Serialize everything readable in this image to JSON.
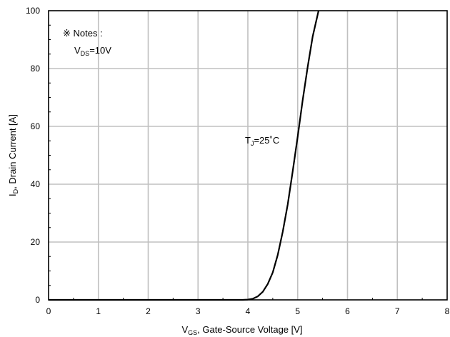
{
  "chart_data": {
    "type": "line",
    "xlabel": {
      "main": "V",
      "sub": "GS",
      "rest": ", Gate-Source Voltage [V]"
    },
    "ylabel": {
      "main": "I",
      "sub": "D",
      "rest": ", Drain Current [A]"
    },
    "xlim": [
      0,
      8
    ],
    "ylim": [
      0,
      100
    ],
    "x_ticks": [
      0,
      1,
      2,
      3,
      4,
      5,
      6,
      7,
      8
    ],
    "y_ticks": [
      0,
      20,
      40,
      60,
      80,
      100
    ],
    "x_tick_labels": [
      "0",
      "1",
      "2",
      "3",
      "4",
      "5",
      "6",
      "7",
      "8"
    ],
    "y_tick_labels": [
      "0",
      "20",
      "40",
      "60",
      "80",
      "100"
    ],
    "grid": true,
    "series": [
      {
        "color": "#000000",
        "x": [
          0.0,
          3.0,
          3.7,
          3.9,
          4.0,
          4.1,
          4.2,
          4.3,
          4.4,
          4.5,
          4.6,
          4.7,
          4.8,
          4.9,
          5.0,
          5.1,
          5.2,
          5.3,
          5.42
        ],
        "y": [
          0.0,
          0.0,
          0.0,
          0.0,
          0.1,
          0.4,
          1.2,
          2.8,
          5.5,
          9.5,
          15.5,
          23.5,
          33.0,
          44.5,
          56.5,
          69.0,
          80.5,
          91.0,
          100.0
        ]
      }
    ],
    "annotations": [
      {
        "text_main": "T",
        "text_sub": "J",
        "text_rest": "=25˚C"
      }
    ],
    "notes": {
      "title": "※ Notes :",
      "line_main": "V",
      "line_sub": "DS",
      "line_rest": "=10V"
    }
  }
}
